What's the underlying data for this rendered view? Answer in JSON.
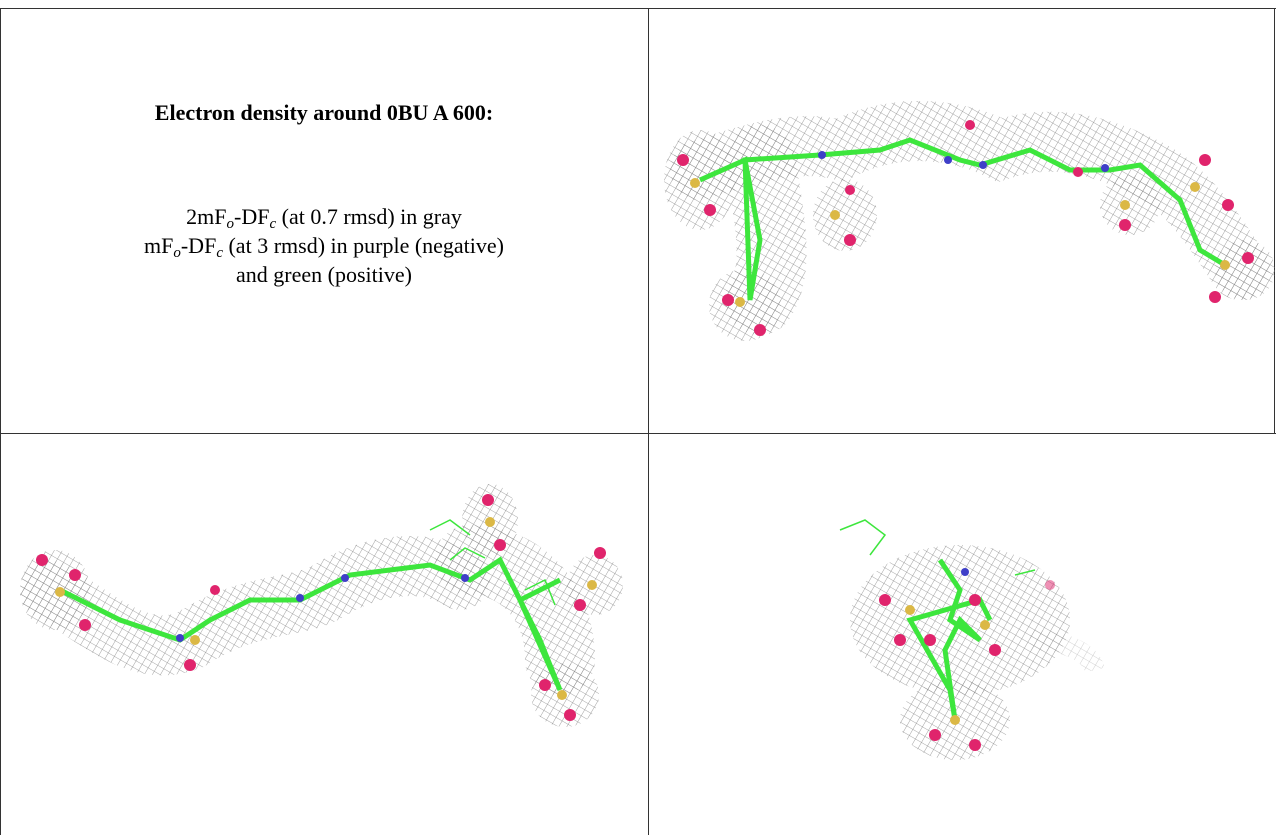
{
  "title": "Electron density around 0BU A 600:",
  "lines": [
    [
      "2mF",
      "o",
      "-DF",
      "c",
      " (at 0.7 rmsd) in gray"
    ],
    [
      "mF",
      "o",
      "-DF",
      "c",
      " (at 3 rmsd) in purple (negative)"
    ],
    [
      "and green (positive)"
    ]
  ]
}
